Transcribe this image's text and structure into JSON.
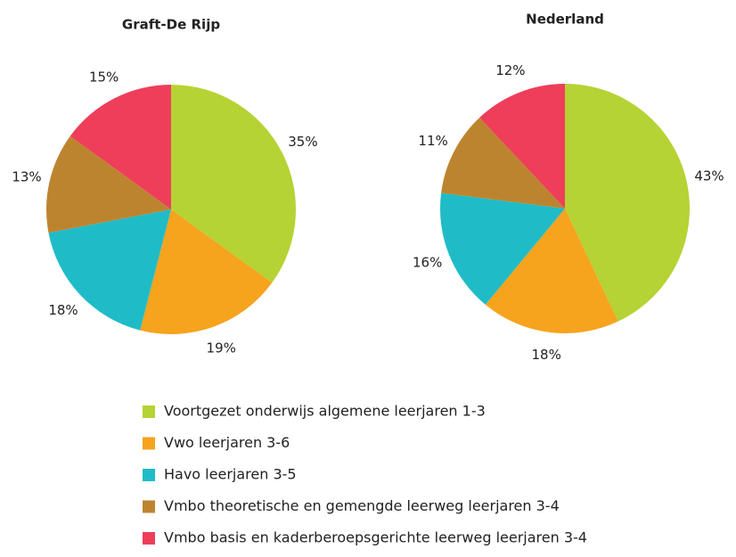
{
  "chart_data": [
    {
      "type": "pie",
      "title": "Graft-De Rijp",
      "categories": [
        "Voortgezet onderwijs algemene leerjaren 1-3",
        "Vwo leerjaren 3-6",
        "Havo leerjaren 3-5",
        "Vmbo theoretische en gemengde leerweg leerjaren 3-4",
        "Vmbo basis en kaderberoepsgerichte leerweg leerjaren 3-4"
      ],
      "values": [
        35,
        19,
        18,
        13,
        15
      ],
      "value_labels": [
        "35%",
        "19%",
        "18%",
        "13%",
        "15%"
      ],
      "colors": [
        "#b5d334",
        "#f6a31e",
        "#1fbcc8",
        "#bd8430",
        "#ee3e5a"
      ]
    },
    {
      "type": "pie",
      "title": "Nederland",
      "categories": [
        "Voortgezet onderwijs algemene leerjaren 1-3",
        "Vwo leerjaren 3-6",
        "Havo leerjaren 3-5",
        "Vmbo theoretische en gemengde leerweg leerjaren 3-4",
        "Vmbo basis en kaderberoepsgerichte leerweg leerjaren 3-4"
      ],
      "values": [
        43,
        18,
        16,
        11,
        12
      ],
      "value_labels": [
        "43%",
        "18%",
        "16%",
        "11%",
        "12%"
      ],
      "colors": [
        "#b5d334",
        "#f6a31e",
        "#1fbcc8",
        "#bd8430",
        "#ee3e5a"
      ]
    }
  ]
}
